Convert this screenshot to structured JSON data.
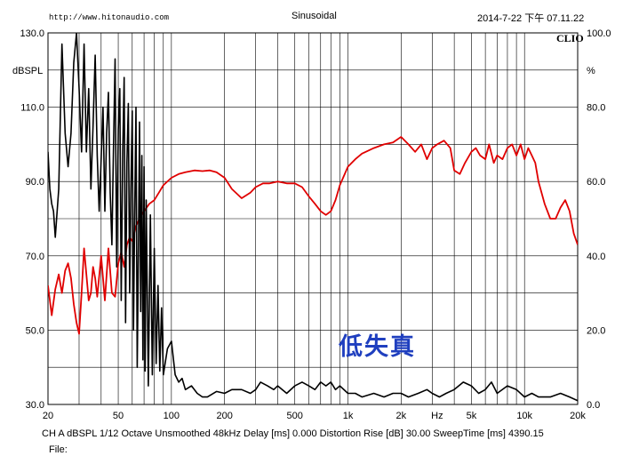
{
  "header": {
    "url": "http://www.hitonaudio.com",
    "title": "Sinusoidal",
    "timestamp": "2014-7-22 下午 07.11.22",
    "brand": "CLIO"
  },
  "footer": {
    "line1": "CH A   dBSPL    1/12 Octave   Unsmoothed   48kHz   Delay [ms] 0.000    Distortion Rise [dB] 30.00    SweepTime [ms] 4390.15",
    "line2": "File:"
  },
  "annotation": "低失真",
  "colors": {
    "frequency_response": "#e00000",
    "distortion": "#000000",
    "annotation": "#1f3fbf"
  },
  "chart_data": {
    "type": "line",
    "x_scale": "log",
    "xlim": [
      20,
      20000
    ],
    "ylim": [
      30,
      130
    ],
    "y2lim": [
      0,
      100
    ],
    "ylabel": "dBSPL",
    "y2label": "%",
    "grid": true,
    "x_tick_labels": [
      {
        "v": 20,
        "t": "20"
      },
      {
        "v": 50,
        "t": "50"
      },
      {
        "v": 100,
        "t": "100"
      },
      {
        "v": 200,
        "t": "200"
      },
      {
        "v": 500,
        "t": "500"
      },
      {
        "v": 1000,
        "t": "1k"
      },
      {
        "v": 2000,
        "t": "2k"
      },
      {
        "v": 3200,
        "t": "Hz"
      },
      {
        "v": 5000,
        "t": "5k"
      },
      {
        "v": 10000,
        "t": "10k"
      },
      {
        "v": 20000,
        "t": "20k"
      }
    ],
    "y_tick_labels": [
      "30.0",
      "50.0",
      "70.0",
      "90.0",
      "110.0",
      "130.0"
    ],
    "y2_tick_labels": [
      "0.0",
      "20.0",
      "40.0",
      "60.0",
      "80.0",
      "100.0"
    ],
    "series": [
      {
        "axis": "left",
        "x": [
          20,
          21,
          22,
          23,
          24,
          25,
          26,
          27,
          28,
          29,
          30,
          31,
          32,
          33,
          34,
          35,
          36,
          37,
          38,
          40,
          42,
          44,
          46,
          48,
          50,
          52,
          54,
          56,
          58,
          60,
          63,
          66,
          70,
          75,
          80,
          85,
          90,
          100,
          110,
          120,
          135,
          150,
          165,
          180,
          200,
          220,
          250,
          280,
          300,
          330,
          360,
          400,
          450,
          500,
          550,
          600,
          650,
          700,
          750,
          800,
          850,
          900,
          1000,
          1100,
          1200,
          1400,
          1600,
          1800,
          2000,
          2100,
          2200,
          2400,
          2600,
          2800,
          3000,
          3200,
          3500,
          3800,
          4000,
          4300,
          4600,
          5000,
          5300,
          5600,
          6000,
          6300,
          6700,
          7000,
          7500,
          8000,
          8500,
          9000,
          9500,
          10000,
          10500,
          11000,
          11500,
          12000,
          13000,
          14000,
          15000,
          16000,
          17000,
          18000,
          19000,
          20000
        ],
        "y": [
          62,
          54,
          61,
          65,
          60,
          66,
          68,
          64,
          57,
          52,
          49,
          60,
          72,
          65,
          58,
          60,
          67,
          64,
          59,
          70,
          58,
          72,
          60,
          59,
          68,
          71,
          67,
          73,
          75,
          74,
          78,
          80,
          82,
          84,
          85,
          87,
          89,
          91,
          92,
          92.5,
          93,
          92.8,
          93,
          92.5,
          91,
          88,
          85.5,
          87,
          88.5,
          89.5,
          89.5,
          90,
          89.5,
          89.5,
          88.5,
          86,
          84,
          82,
          81,
          82,
          85,
          89,
          94,
          96,
          97.5,
          99,
          100,
          100.5,
          102,
          101,
          100,
          98,
          100,
          96,
          99,
          100,
          101,
          99,
          93,
          92,
          95,
          98,
          99,
          97,
          96,
          100,
          95,
          97,
          96,
          99,
          100,
          97,
          100,
          96,
          99,
          97,
          95,
          90,
          84,
          80,
          80,
          83,
          85,
          82,
          76,
          73
        ]
      },
      {
        "axis": "left",
        "x": [
          20,
          20.5,
          21,
          21.5,
          22,
          23,
          24,
          25,
          26,
          27,
          28,
          29,
          30,
          31,
          32,
          33,
          34,
          35,
          36,
          37,
          38,
          39,
          40,
          41,
          42,
          43,
          44,
          45,
          46,
          47,
          48,
          49,
          50,
          51,
          52,
          53,
          54,
          55,
          56,
          57,
          58,
          59,
          60,
          61,
          62,
          63,
          64,
          65,
          66,
          67,
          68,
          69,
          70,
          71,
          72,
          74,
          76,
          78,
          80,
          82,
          84,
          86,
          88,
          90,
          95,
          100,
          105,
          110,
          115,
          120,
          130,
          140,
          150,
          160,
          180,
          200,
          220,
          250,
          280,
          300,
          320,
          350,
          380,
          400,
          450,
          500,
          550,
          600,
          650,
          700,
          750,
          800,
          850,
          900,
          1000,
          1100,
          1200,
          1400,
          1600,
          1800,
          2000,
          2200,
          2500,
          2800,
          3000,
          3300,
          3600,
          4000,
          4500,
          5000,
          5500,
          6000,
          6500,
          7000,
          8000,
          9000,
          10000,
          11000,
          12000,
          14000,
          16000,
          18000,
          20000
        ],
        "y": [
          98,
          88,
          84,
          82,
          75,
          88,
          127,
          103,
          94,
          103,
          122,
          130,
          115,
          98,
          127,
          98,
          115,
          88,
          105,
          124,
          97,
          82,
          96,
          110,
          82,
          103,
          114,
          87,
          73,
          99,
          123,
          67,
          104,
          115,
          58,
          98,
          118,
          52,
          95,
          111,
          60,
          88,
          109,
          50,
          82,
          110,
          40,
          70,
          106,
          55,
          97,
          42,
          94,
          39,
          85,
          35,
          81,
          38,
          72,
          41,
          62,
          39,
          56,
          38,
          45,
          47,
          38,
          36,
          37,
          34,
          35,
          33,
          32,
          32,
          33.5,
          33,
          34,
          34,
          33,
          34,
          36,
          35,
          34,
          35,
          33,
          35,
          36,
          35,
          34,
          36,
          35,
          36,
          34,
          35,
          33,
          33,
          32,
          33,
          32,
          33,
          33,
          32,
          33,
          34,
          33,
          32,
          33,
          34,
          36,
          35,
          33,
          34,
          36,
          33,
          35,
          34,
          32,
          33,
          32,
          32,
          33,
          32,
          31
        ]
      }
    ]
  }
}
